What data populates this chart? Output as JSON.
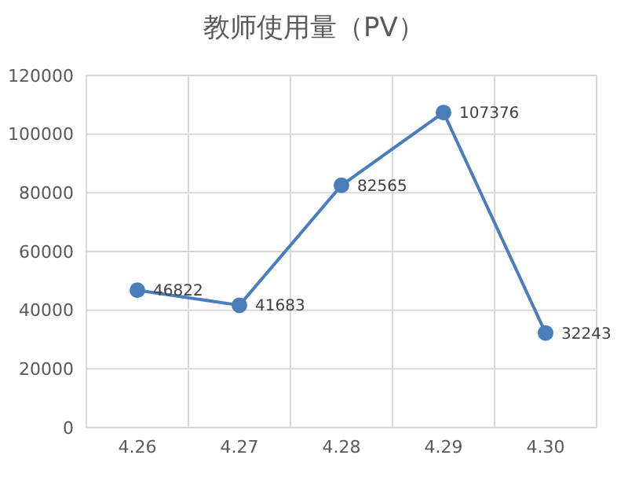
{
  "chart_data": {
    "type": "line",
    "title": "教师使用量（PV）",
    "categories": [
      "4.26",
      "4.27",
      "4.28",
      "4.29",
      "4.30"
    ],
    "series": [
      {
        "color": "#4a7ebb",
        "values": [
          46822,
          41683,
          82565,
          107376,
          32243
        ]
      }
    ],
    "ylim": [
      0,
      120000
    ],
    "yticks": [
      0,
      20000,
      40000,
      60000,
      80000,
      100000,
      120000
    ],
    "grid": true,
    "marker": "circle",
    "data_labels": true,
    "legend": false
  }
}
